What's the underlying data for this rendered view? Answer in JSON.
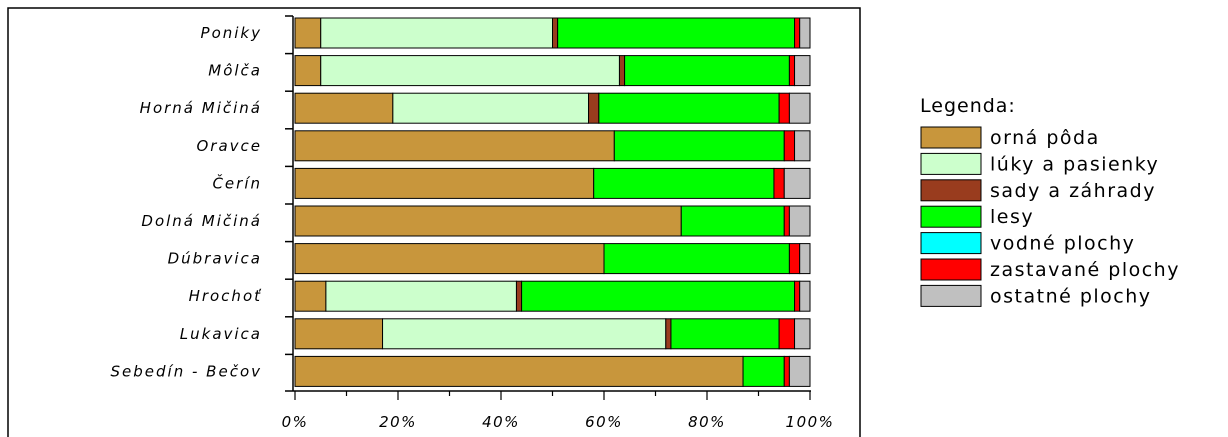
{
  "chart_data": {
    "type": "bar",
    "orientation": "horizontal",
    "stacked": "percent",
    "title": "",
    "xlabel": "",
    "ylabel": "",
    "xlim": [
      0,
      100
    ],
    "x_ticks": [
      "0%",
      "20%",
      "40%",
      "60%",
      "80%",
      "100%"
    ],
    "categories": [
      "Poniky",
      "Môlča",
      "Horná Mičiná",
      "Oravce",
      "Čerín",
      "Dolná Mičiná",
      "Dúbravica",
      "Hrochoť",
      "Lukavica",
      "Sebedín - Bečov"
    ],
    "legend_title": "Legenda:",
    "legend_position": "right",
    "grid": false,
    "series": [
      {
        "name": "orná pôda",
        "color": "#C8963C",
        "values": [
          5,
          5,
          19,
          62,
          58,
          75,
          60,
          6,
          17,
          87
        ]
      },
      {
        "name": "lúky a pasienky",
        "color": "#CCFFCC",
        "values": [
          45,
          58,
          38,
          0,
          0,
          0,
          0,
          37,
          55,
          0
        ]
      },
      {
        "name": "sady a záhrady",
        "color": "#993C1E",
        "values": [
          1,
          1,
          2,
          0,
          0,
          0,
          0,
          1,
          1,
          0
        ]
      },
      {
        "name": "lesy",
        "color": "#00FF00",
        "values": [
          46,
          32,
          35,
          33,
          35,
          20,
          36,
          53,
          21,
          8
        ]
      },
      {
        "name": "vodné plochy",
        "color": "#00FFFF",
        "values": [
          0,
          0,
          0,
          0,
          0,
          0,
          0,
          0,
          0,
          0
        ]
      },
      {
        "name": "zastavané plochy",
        "color": "#FF0000",
        "values": [
          1,
          1,
          2,
          2,
          2,
          1,
          2,
          1,
          3,
          1
        ]
      },
      {
        "name": "ostatné plochy",
        "color": "#C0C0C0",
        "values": [
          2,
          3,
          4,
          3,
          5,
          4,
          2,
          2,
          3,
          4
        ]
      }
    ]
  }
}
